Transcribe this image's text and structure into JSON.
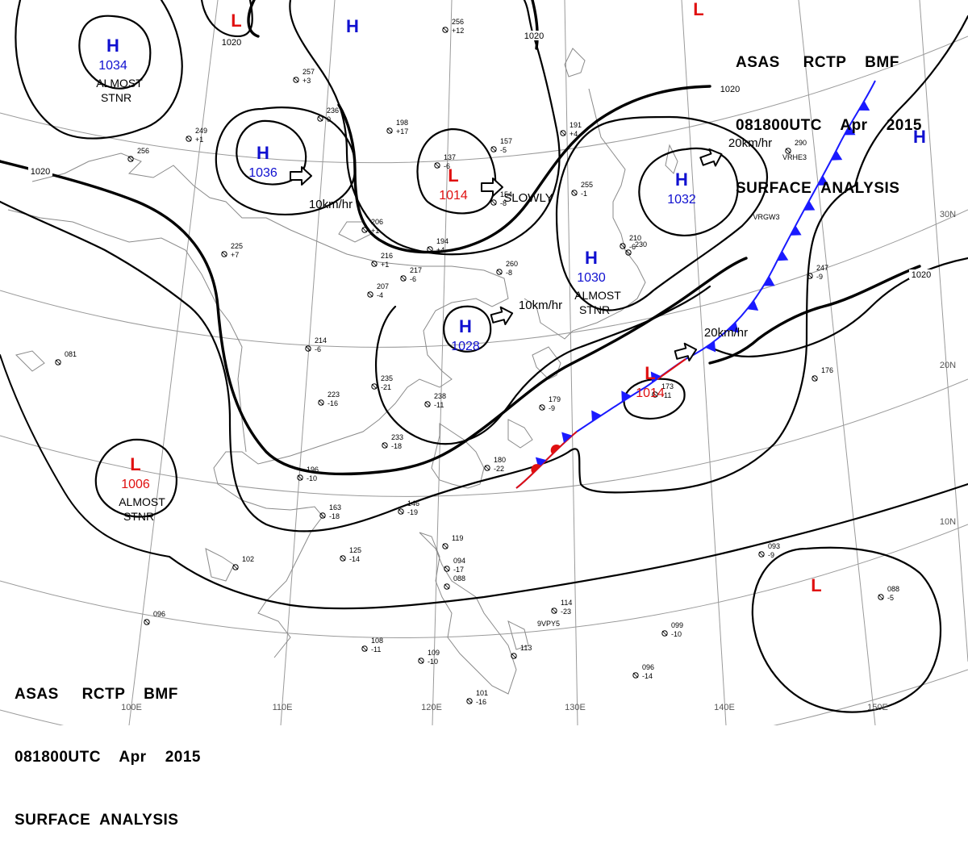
{
  "header": {
    "line1": "ASAS     RCTP    BMF",
    "line2": "081800UTC    Apr    2015",
    "line3": "SURFACE  ANALYSIS"
  },
  "footer": {
    "line1": "ASAS     RCTP    BMF",
    "line2": "081800UTC    Apr    2015",
    "line3": "SURFACE  ANALYSIS"
  },
  "colors": {
    "high": "#1010d0",
    "low": "#e01010",
    "cold_front": "#1a1aff",
    "warm_front": "#e01010",
    "isobar": "#000000",
    "grid": "#9a9a9a",
    "coast": "#8a8a8a"
  },
  "longitude_labels": [
    "100E",
    "110E",
    "120E",
    "130E",
    "140E",
    "150E"
  ],
  "latitude_labels": [
    "30N",
    "20N",
    "10N"
  ],
  "isobar_labels": [
    "1020",
    "1020",
    "1020",
    "1020",
    "1020"
  ],
  "pressure_systems": [
    {
      "type": "H",
      "value": "1034",
      "note_line1": "ALMOST",
      "note_line2": "STNR"
    },
    {
      "type": "L",
      "value": ""
    },
    {
      "type": "H",
      "value": ""
    },
    {
      "type": "H",
      "value": "1036"
    },
    {
      "type": "L",
      "value": "1014"
    },
    {
      "type": "H",
      "value": "1032"
    },
    {
      "type": "H",
      "value": "1030",
      "note_line1": "ALMOST",
      "note_line2": "STNR"
    },
    {
      "type": "H",
      "value": "1028"
    },
    {
      "type": "L",
      "value": "1014"
    },
    {
      "type": "L",
      "value": "1006",
      "note_line1": "ALMOST",
      "note_line2": "STNR"
    },
    {
      "type": "L",
      "value": ""
    },
    {
      "type": "H",
      "value": ""
    },
    {
      "type": "L",
      "value": ""
    }
  ],
  "motion_labels": [
    "10km/hr",
    "SLOWLY",
    "20km/hr",
    "10km/hr",
    "20km/hr"
  ],
  "station_plots": [
    {
      "n": "256",
      "v": "+12"
    },
    {
      "n": "257",
      "v": "+3"
    },
    {
      "n": "236",
      "v": "0"
    },
    {
      "n": "249",
      "v": "+1"
    },
    {
      "n": "256",
      "v": ""
    },
    {
      "n": "198",
      "v": "+17"
    },
    {
      "n": "137",
      "v": "-6"
    },
    {
      "n": "157",
      "v": "-5"
    },
    {
      "n": "191",
      "v": "+4"
    },
    {
      "n": "206",
      "v": "+1"
    },
    {
      "n": "225",
      "v": "+7"
    },
    {
      "n": "194",
      "v": "+4"
    },
    {
      "n": "217",
      "v": "-6"
    },
    {
      "n": "216",
      "v": "+1"
    },
    {
      "n": "207",
      "v": "-4"
    },
    {
      "n": "214",
      "v": "-6"
    },
    {
      "n": "235",
      "v": "-21"
    },
    {
      "n": "223",
      "v": "-16"
    },
    {
      "n": "238",
      "v": "-11"
    },
    {
      "n": "233",
      "v": "-18"
    },
    {
      "n": "196",
      "v": "-10"
    },
    {
      "n": "163",
      "v": "-18"
    },
    {
      "n": "146",
      "v": "-19"
    },
    {
      "n": "125",
      "v": "-14"
    },
    {
      "n": "102",
      "v": ""
    },
    {
      "n": "096",
      "v": ""
    },
    {
      "n": "119",
      "v": ""
    },
    {
      "n": "094",
      "v": "-17"
    },
    {
      "n": "088",
      "v": ""
    },
    {
      "n": "179",
      "v": "-9"
    },
    {
      "n": "180",
      "v": "-22"
    },
    {
      "n": "173",
      "v": "-11"
    },
    {
      "n": "247",
      "v": "-9"
    },
    {
      "n": "290",
      "v": ""
    },
    {
      "n": "176",
      "v": ""
    },
    {
      "n": "093",
      "v": "-9"
    },
    {
      "n": "088",
      "v": "-5"
    },
    {
      "n": "099",
      "v": "-10"
    },
    {
      "n": "096",
      "v": "-14"
    },
    {
      "n": "114",
      "v": "-23"
    },
    {
      "n": "108",
      "v": "-11"
    },
    {
      "n": "109",
      "v": "-10"
    },
    {
      "n": "101",
      "v": "-16"
    },
    {
      "n": "113",
      "v": ""
    },
    {
      "n": "081",
      "v": ""
    },
    {
      "n": "210",
      "v": "-6"
    },
    {
      "n": "260",
      "v": "-8"
    },
    {
      "n": "230",
      "v": ""
    },
    {
      "n": "255",
      "v": "-1"
    },
    {
      "n": "154",
      "v": "-8"
    }
  ],
  "ship_ids": [
    "VRHE3",
    "VRGW3",
    "9VPY5"
  ],
  "chart_data": {
    "type": "surface-analysis",
    "title": "ASAS RCTP BMF 081800UTC Apr 2015 SURFACE ANALYSIS",
    "issuer": "RCTP",
    "valid_time": "081800UTC Apr 2015",
    "pressure_centers": [
      {
        "type": "H",
        "hpa": 1034,
        "motion": "ALMOST STNR"
      },
      {
        "type": "H",
        "hpa": 1036,
        "motion": "10km/hr"
      },
      {
        "type": "L",
        "hpa": 1014,
        "motion": "SLOWLY"
      },
      {
        "type": "H",
        "hpa": 1032,
        "motion": "20km/hr"
      },
      {
        "type": "H",
        "hpa": 1030,
        "motion": "ALMOST STNR"
      },
      {
        "type": "H",
        "hpa": 1028,
        "motion": "10km/hr"
      },
      {
        "type": "L",
        "hpa": 1014,
        "motion": "20km/hr"
      },
      {
        "type": "L",
        "hpa": 1006,
        "motion": "ALMOST STNR"
      },
      {
        "type": "L",
        "hpa": null
      },
      {
        "type": "H",
        "hpa": null
      },
      {
        "type": "L",
        "hpa": null
      }
    ],
    "isobar_interval_hpa": 4,
    "fronts": [
      {
        "type": "cold",
        "extends": "from low 1014 northeast"
      },
      {
        "type": "stationary",
        "extends": "from low 1014 southwest"
      }
    ],
    "longitude_ticks": [
      "100E",
      "110E",
      "120E",
      "130E",
      "140E",
      "150E"
    ],
    "latitude_ticks": [
      "30N",
      "20N",
      "10N"
    ]
  }
}
